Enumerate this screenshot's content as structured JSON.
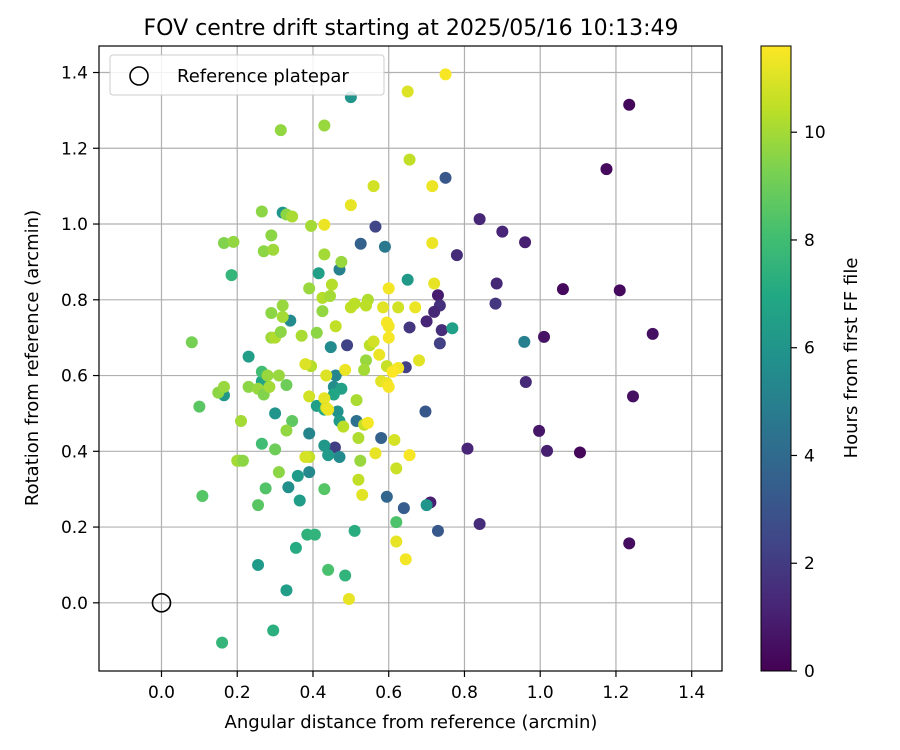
{
  "chart_data": {
    "type": "scatter",
    "title": "FOV centre drift starting at 2025/05/16 10:13:49",
    "xlabel": "Angular distance from reference (arcmin)",
    "ylabel": "Rotation from reference (arcmin)",
    "xlim": [
      -0.165,
      1.48
    ],
    "ylim": [
      -0.18,
      1.47
    ],
    "xticks": [
      0.0,
      0.2,
      0.4,
      0.6,
      0.8,
      1.0,
      1.2,
      1.4
    ],
    "xtick_labels": [
      "0.0",
      "0.2",
      "0.4",
      "0.6",
      "0.8",
      "1.0",
      "1.2",
      "1.4"
    ],
    "yticks": [
      0.0,
      0.2,
      0.4,
      0.6,
      0.8,
      1.0,
      1.2,
      1.4
    ],
    "ytick_labels": [
      "0.0",
      "0.2",
      "0.4",
      "0.6",
      "0.8",
      "1.0",
      "1.2",
      "1.4"
    ],
    "grid": true,
    "legend": {
      "position": "top-left",
      "entries": [
        "Reference platepar"
      ]
    },
    "reference_point": {
      "x": 0.0,
      "y": 0.0
    },
    "colorbar": {
      "label": "Hours from first FF file",
      "colormap": "viridis",
      "range": [
        0,
        11.6
      ],
      "ticks": [
        0,
        2,
        4,
        6,
        8,
        10
      ],
      "tick_labels": [
        "0",
        "2",
        "4",
        "6",
        "8",
        "10"
      ]
    },
    "points": [
      {
        "x": 1.235,
        "y": 1.315,
        "c": 0.2
      },
      {
        "x": 1.175,
        "y": 1.145,
        "c": 0.3
      },
      {
        "x": 1.06,
        "y": 0.828,
        "c": 0.3
      },
      {
        "x": 1.21,
        "y": 0.825,
        "c": 0.3
      },
      {
        "x": 1.297,
        "y": 0.71,
        "c": 0.5
      },
      {
        "x": 1.245,
        "y": 0.545,
        "c": 0.5
      },
      {
        "x": 1.235,
        "y": 0.157,
        "c": 0.4
      },
      {
        "x": 1.105,
        "y": 0.397,
        "c": 0.2
      },
      {
        "x": 1.018,
        "y": 0.401,
        "c": 1.0
      },
      {
        "x": 0.997,
        "y": 0.454,
        "c": 0.7
      },
      {
        "x": 1.01,
        "y": 0.702,
        "c": 0.6
      },
      {
        "x": 0.96,
        "y": 0.952,
        "c": 1.0
      },
      {
        "x": 0.9,
        "y": 0.98,
        "c": 1.2
      },
      {
        "x": 0.84,
        "y": 1.013,
        "c": 1.3
      },
      {
        "x": 0.885,
        "y": 0.843,
        "c": 1.3
      },
      {
        "x": 0.882,
        "y": 0.79,
        "c": 1.8
      },
      {
        "x": 0.78,
        "y": 0.918,
        "c": 1.5
      },
      {
        "x": 0.962,
        "y": 0.583,
        "c": 1.4
      },
      {
        "x": 0.84,
        "y": 0.208,
        "c": 1.5
      },
      {
        "x": 0.808,
        "y": 0.407,
        "c": 1.2
      },
      {
        "x": 0.71,
        "y": 0.265,
        "c": 1.0
      },
      {
        "x": 0.73,
        "y": 0.812,
        "c": 0.9
      },
      {
        "x": 0.735,
        "y": 0.785,
        "c": 1.6
      },
      {
        "x": 0.72,
        "y": 0.768,
        "c": 1.3
      },
      {
        "x": 0.74,
        "y": 0.72,
        "c": 1.5
      },
      {
        "x": 0.7,
        "y": 0.743,
        "c": 1.2
      },
      {
        "x": 0.655,
        "y": 0.727,
        "c": 1.8
      },
      {
        "x": 0.735,
        "y": 0.685,
        "c": 2.2
      },
      {
        "x": 0.565,
        "y": 0.993,
        "c": 2.4
      },
      {
        "x": 0.75,
        "y": 1.122,
        "c": 3.2
      },
      {
        "x": 0.645,
        "y": 0.622,
        "c": 2.2
      },
      {
        "x": 0.49,
        "y": 0.68,
        "c": 2.3
      },
      {
        "x": 0.458,
        "y": 0.41,
        "c": 2.1
      },
      {
        "x": 0.58,
        "y": 0.435,
        "c": 3.6
      },
      {
        "x": 0.697,
        "y": 0.505,
        "c": 3.2
      },
      {
        "x": 0.73,
        "y": 0.19,
        "c": 3.2
      },
      {
        "x": 0.64,
        "y": 0.25,
        "c": 3.4
      },
      {
        "x": 0.595,
        "y": 0.28,
        "c": 3.8
      },
      {
        "x": 0.526,
        "y": 0.948,
        "c": 3.6
      },
      {
        "x": 0.59,
        "y": 0.94,
        "c": 4.7
      },
      {
        "x": 0.958,
        "y": 0.689,
        "c": 5.0
      },
      {
        "x": 0.65,
        "y": 0.853,
        "c": 6.2
      },
      {
        "x": 0.768,
        "y": 0.725,
        "c": 6.5
      },
      {
        "x": 0.7,
        "y": 0.258,
        "c": 6.0
      },
      {
        "x": 0.47,
        "y": 0.88,
        "c": 5.0
      },
      {
        "x": 0.415,
        "y": 0.87,
        "c": 6.5
      },
      {
        "x": 0.447,
        "y": 0.675,
        "c": 5.5
      },
      {
        "x": 0.5,
        "y": 1.335,
        "c": 6.0
      },
      {
        "x": 0.32,
        "y": 1.03,
        "c": 6.0
      },
      {
        "x": 0.34,
        "y": 0.745,
        "c": 5.5
      },
      {
        "x": 0.23,
        "y": 0.65,
        "c": 6.4
      },
      {
        "x": 0.165,
        "y": 0.548,
        "c": 6.1
      },
      {
        "x": 0.455,
        "y": 0.57,
        "c": 5.6
      },
      {
        "x": 0.46,
        "y": 0.6,
        "c": 5.3
      },
      {
        "x": 0.475,
        "y": 0.565,
        "c": 6.6
      },
      {
        "x": 0.455,
        "y": 0.55,
        "c": 6.8
      },
      {
        "x": 0.41,
        "y": 0.52,
        "c": 6.5
      },
      {
        "x": 0.43,
        "y": 0.51,
        "c": 7.0
      },
      {
        "x": 0.465,
        "y": 0.505,
        "c": 5.8
      },
      {
        "x": 0.47,
        "y": 0.48,
        "c": 6.2
      },
      {
        "x": 0.39,
        "y": 0.447,
        "c": 5.2
      },
      {
        "x": 0.43,
        "y": 0.415,
        "c": 6.1
      },
      {
        "x": 0.44,
        "y": 0.39,
        "c": 6.3
      },
      {
        "x": 0.47,
        "y": 0.385,
        "c": 5.5
      },
      {
        "x": 0.39,
        "y": 0.345,
        "c": 5.4
      },
      {
        "x": 0.36,
        "y": 0.335,
        "c": 6.3
      },
      {
        "x": 0.335,
        "y": 0.305,
        "c": 5.7
      },
      {
        "x": 0.365,
        "y": 0.27,
        "c": 6.4
      },
      {
        "x": 0.515,
        "y": 0.48,
        "c": 4.3
      },
      {
        "x": 0.51,
        "y": 0.19,
        "c": 7.2
      },
      {
        "x": 0.255,
        "y": 0.1,
        "c": 6.3
      },
      {
        "x": 0.33,
        "y": 0.033,
        "c": 6.4
      },
      {
        "x": 0.3,
        "y": 0.5,
        "c": 6.0
      },
      {
        "x": 0.265,
        "y": 0.585,
        "c": 6.8
      },
      {
        "x": 0.385,
        "y": 0.18,
        "c": 7.4
      },
      {
        "x": 0.405,
        "y": 0.18,
        "c": 7.5
      },
      {
        "x": 0.355,
        "y": 0.145,
        "c": 7.1
      },
      {
        "x": 0.44,
        "y": 0.087,
        "c": 8.2
      },
      {
        "x": 0.485,
        "y": 0.072,
        "c": 7.5
      },
      {
        "x": 0.16,
        "y": -0.105,
        "c": 7.6
      },
      {
        "x": 0.295,
        "y": -0.073,
        "c": 7.3
      },
      {
        "x": 0.185,
        "y": 0.865,
        "c": 7.6
      },
      {
        "x": 0.265,
        "y": 0.61,
        "c": 8.0
      },
      {
        "x": 0.345,
        "y": 0.48,
        "c": 8.7
      },
      {
        "x": 0.265,
        "y": 0.42,
        "c": 8.0
      },
      {
        "x": 0.275,
        "y": 0.302,
        "c": 8.4
      },
      {
        "x": 0.255,
        "y": 0.258,
        "c": 8.6
      },
      {
        "x": 0.62,
        "y": 0.213,
        "c": 8.3
      },
      {
        "x": 0.43,
        "y": 0.3,
        "c": 8.5
      },
      {
        "x": 0.108,
        "y": 0.282,
        "c": 8.5
      },
      {
        "x": 0.1,
        "y": 0.518,
        "c": 8.6
      },
      {
        "x": 0.205,
        "y": 0.375,
        "c": 9.1
      },
      {
        "x": 0.3,
        "y": 0.405,
        "c": 9.0
      },
      {
        "x": 0.33,
        "y": 0.575,
        "c": 9.0
      },
      {
        "x": 0.23,
        "y": 0.57,
        "c": 9.6
      },
      {
        "x": 0.255,
        "y": 0.565,
        "c": 9.8
      },
      {
        "x": 0.27,
        "y": 0.55,
        "c": 9.4
      },
      {
        "x": 0.15,
        "y": 0.555,
        "c": 9.6
      },
      {
        "x": 0.165,
        "y": 0.57,
        "c": 9.8
      },
      {
        "x": 0.08,
        "y": 0.688,
        "c": 9.2
      },
      {
        "x": 0.21,
        "y": 0.48,
        "c": 10.0
      },
      {
        "x": 0.2,
        "y": 0.375,
        "c": 10.0
      },
      {
        "x": 0.215,
        "y": 0.375,
        "c": 9.6
      },
      {
        "x": 0.285,
        "y": 0.57,
        "c": 10.0
      },
      {
        "x": 0.28,
        "y": 0.6,
        "c": 9.8
      },
      {
        "x": 0.31,
        "y": 0.6,
        "c": 9.8
      },
      {
        "x": 0.29,
        "y": 0.7,
        "c": 9.9
      },
      {
        "x": 0.3,
        "y": 0.7,
        "c": 10.2
      },
      {
        "x": 0.37,
        "y": 0.705,
        "c": 10.1
      },
      {
        "x": 0.395,
        "y": 0.625,
        "c": 10.3
      },
      {
        "x": 0.32,
        "y": 0.755,
        "c": 10.0
      },
      {
        "x": 0.32,
        "y": 0.785,
        "c": 9.8
      },
      {
        "x": 0.29,
        "y": 0.765,
        "c": 9.6
      },
      {
        "x": 0.315,
        "y": 0.715,
        "c": 9.6
      },
      {
        "x": 0.33,
        "y": 0.455,
        "c": 9.7
      },
      {
        "x": 0.31,
        "y": 0.345,
        "c": 9.6
      },
      {
        "x": 0.39,
        "y": 0.385,
        "c": 10.5
      },
      {
        "x": 0.165,
        "y": 0.95,
        "c": 9.4
      },
      {
        "x": 0.19,
        "y": 0.953,
        "c": 9.7
      },
      {
        "x": 0.29,
        "y": 0.97,
        "c": 9.6
      },
      {
        "x": 0.27,
        "y": 0.928,
        "c": 9.6
      },
      {
        "x": 0.295,
        "y": 0.932,
        "c": 9.9
      },
      {
        "x": 0.265,
        "y": 1.033,
        "c": 9.6
      },
      {
        "x": 0.33,
        "y": 1.025,
        "c": 9.6
      },
      {
        "x": 0.345,
        "y": 1.02,
        "c": 10.1
      },
      {
        "x": 0.315,
        "y": 1.248,
        "c": 9.7
      },
      {
        "x": 0.43,
        "y": 1.26,
        "c": 9.8
      },
      {
        "x": 0.395,
        "y": 0.995,
        "c": 10.0
      },
      {
        "x": 0.43,
        "y": 0.92,
        "c": 10.0
      },
      {
        "x": 0.39,
        "y": 0.83,
        "c": 9.8
      },
      {
        "x": 0.425,
        "y": 0.805,
        "c": 10.3
      },
      {
        "x": 0.445,
        "y": 0.81,
        "c": 10.0
      },
      {
        "x": 0.41,
        "y": 0.713,
        "c": 9.6
      },
      {
        "x": 0.425,
        "y": 0.77,
        "c": 9.7
      },
      {
        "x": 0.45,
        "y": 0.84,
        "c": 10.3
      },
      {
        "x": 0.475,
        "y": 0.9,
        "c": 9.8
      },
      {
        "x": 0.46,
        "y": 0.73,
        "c": 10.5
      },
      {
        "x": 0.5,
        "y": 0.78,
        "c": 10.5
      },
      {
        "x": 0.51,
        "y": 0.79,
        "c": 10.4
      },
      {
        "x": 0.545,
        "y": 0.8,
        "c": 10.2
      },
      {
        "x": 0.54,
        "y": 0.785,
        "c": 10.4
      },
      {
        "x": 0.54,
        "y": 0.64,
        "c": 9.8
      },
      {
        "x": 0.55,
        "y": 0.68,
        "c": 10.4
      },
      {
        "x": 0.56,
        "y": 0.69,
        "c": 10.8
      },
      {
        "x": 0.535,
        "y": 0.615,
        "c": 10.0
      },
      {
        "x": 0.515,
        "y": 0.535,
        "c": 10.1
      },
      {
        "x": 0.535,
        "y": 0.47,
        "c": 10.6
      },
      {
        "x": 0.48,
        "y": 0.465,
        "c": 10.4
      },
      {
        "x": 0.52,
        "y": 0.435,
        "c": 10.2
      },
      {
        "x": 0.525,
        "y": 0.375,
        "c": 9.8
      },
      {
        "x": 0.52,
        "y": 0.325,
        "c": 10.5
      },
      {
        "x": 0.53,
        "y": 0.285,
        "c": 11.1
      },
      {
        "x": 0.495,
        "y": 0.01,
        "c": 11.2
      },
      {
        "x": 0.39,
        "y": 0.545,
        "c": 10.8
      },
      {
        "x": 0.38,
        "y": 0.63,
        "c": 11.0
      },
      {
        "x": 0.435,
        "y": 0.6,
        "c": 11.0
      },
      {
        "x": 0.43,
        "y": 0.54,
        "c": 11.2
      },
      {
        "x": 0.435,
        "y": 0.515,
        "c": 11.1
      },
      {
        "x": 0.44,
        "y": 0.51,
        "c": 11.3
      },
      {
        "x": 0.38,
        "y": 0.385,
        "c": 10.9
      },
      {
        "x": 0.56,
        "y": 1.1,
        "c": 10.8
      },
      {
        "x": 0.65,
        "y": 1.35,
        "c": 11.0
      },
      {
        "x": 0.75,
        "y": 1.395,
        "c": 11.5
      },
      {
        "x": 0.655,
        "y": 1.17,
        "c": 10.5
      },
      {
        "x": 0.715,
        "y": 1.1,
        "c": 11.3
      },
      {
        "x": 0.5,
        "y": 1.05,
        "c": 11.2
      },
      {
        "x": 0.43,
        "y": 0.998,
        "c": 11.3
      },
      {
        "x": 0.715,
        "y": 0.95,
        "c": 11.3
      },
      {
        "x": 0.6,
        "y": 0.83,
        "c": 11.4
      },
      {
        "x": 0.72,
        "y": 0.843,
        "c": 11.2
      },
      {
        "x": 0.585,
        "y": 0.78,
        "c": 11.1
      },
      {
        "x": 0.625,
        "y": 0.78,
        "c": 10.8
      },
      {
        "x": 0.67,
        "y": 0.78,
        "c": 11.3
      },
      {
        "x": 0.595,
        "y": 0.74,
        "c": 11.5
      },
      {
        "x": 0.6,
        "y": 0.73,
        "c": 11.4
      },
      {
        "x": 0.6,
        "y": 0.7,
        "c": 11.5
      },
      {
        "x": 0.575,
        "y": 0.655,
        "c": 11.3
      },
      {
        "x": 0.595,
        "y": 0.625,
        "c": 10.6
      },
      {
        "x": 0.625,
        "y": 0.62,
        "c": 11.4
      },
      {
        "x": 0.68,
        "y": 0.64,
        "c": 11.1
      },
      {
        "x": 0.58,
        "y": 0.585,
        "c": 11.1
      },
      {
        "x": 0.595,
        "y": 0.58,
        "c": 11.3
      },
      {
        "x": 0.6,
        "y": 0.57,
        "c": 11.5
      },
      {
        "x": 0.61,
        "y": 0.61,
        "c": 11.6
      },
      {
        "x": 0.485,
        "y": 0.615,
        "c": 11.3
      },
      {
        "x": 0.545,
        "y": 0.475,
        "c": 11.4
      },
      {
        "x": 0.565,
        "y": 0.395,
        "c": 11.2
      },
      {
        "x": 0.615,
        "y": 0.43,
        "c": 10.9
      },
      {
        "x": 0.655,
        "y": 0.39,
        "c": 11.5
      },
      {
        "x": 0.62,
        "y": 0.355,
        "c": 10.7
      },
      {
        "x": 0.62,
        "y": 0.162,
        "c": 11.2
      },
      {
        "x": 0.645,
        "y": 0.115,
        "c": 11.4
      }
    ]
  }
}
